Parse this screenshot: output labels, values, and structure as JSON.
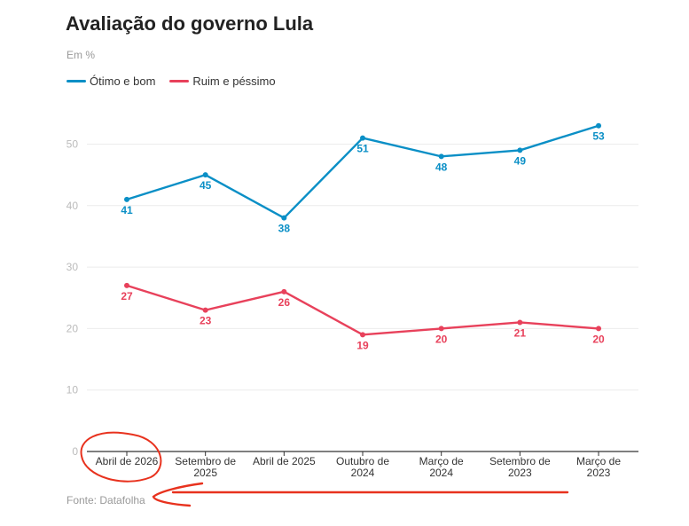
{
  "title": "Avaliação do governo Lula",
  "subtitle": "Em %",
  "source": "Fonte: Datafolha",
  "colors": {
    "series_1": "#0a8fc6",
    "series_2": "#e8415b",
    "annotation": "#e8321e",
    "axis_tick": "#bbbbbb",
    "grid": "#ececec",
    "baseline": "#333333"
  },
  "chart_data": {
    "type": "line",
    "categories": [
      [
        "Abril de 2026"
      ],
      [
        "Setembro de",
        "2025"
      ],
      [
        "Abril de 2025"
      ],
      [
        "Outubro de",
        "2024"
      ],
      [
        "Março de",
        "2024"
      ],
      [
        "Setembro de",
        "2023"
      ],
      [
        "Março de",
        "2023"
      ]
    ],
    "series": [
      {
        "name": "Ótimo e bom",
        "values": [
          41,
          45,
          38,
          51,
          48,
          49,
          53
        ]
      },
      {
        "name": "Ruim e péssimo",
        "values": [
          27,
          23,
          26,
          19,
          20,
          21,
          20
        ]
      }
    ],
    "yticks": [
      0,
      10,
      20,
      30,
      40,
      50
    ],
    "ylim": [
      0,
      55
    ],
    "grid": true,
    "legend": "top-left",
    "annotations": [
      "red circle around first category label",
      "red arrow pointing left toward source"
    ]
  }
}
